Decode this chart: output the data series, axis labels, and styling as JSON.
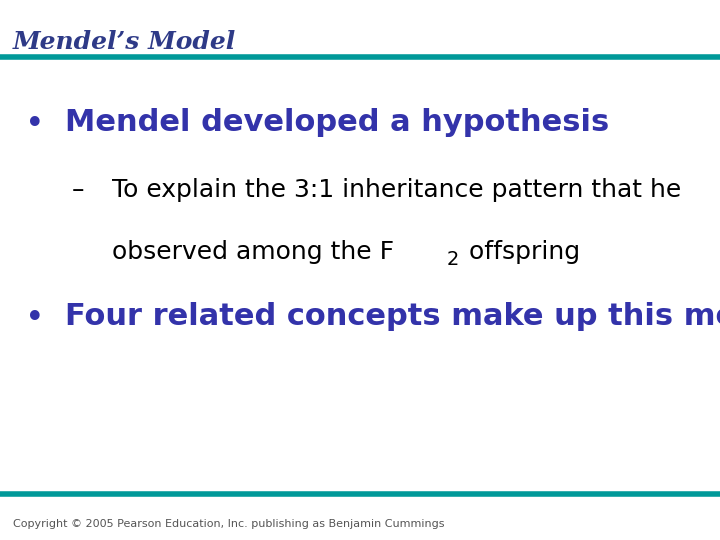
{
  "title": "Mendel’s Model",
  "title_color": "#2E3A87",
  "title_fontsize": 18,
  "title_style": "italic",
  "title_weight": "bold",
  "teal_color": "#009999",
  "teal_linewidth": 4,
  "bullet_color": "#3333AA",
  "bullet1_text": "Mendel developed a hypothesis",
  "bullet1_fontsize": 22,
  "sub_dash": "–",
  "sub_line1": "To explain the 3:1 inheritance pattern that he",
  "sub_line2_before": "observed among the F",
  "sub_line2_sub": "2",
  "sub_line2_after": " offspring",
  "sub_fontsize": 18,
  "sub_color": "#000000",
  "bullet2_text": "Four related concepts make up this model",
  "bullet2_fontsize": 22,
  "copyright_text": "Copyright © 2005 Pearson Education, Inc. publishing as Benjamin Cummings",
  "copyright_fontsize": 8,
  "copyright_color": "#555555",
  "bg_color": "#FFFFFF"
}
